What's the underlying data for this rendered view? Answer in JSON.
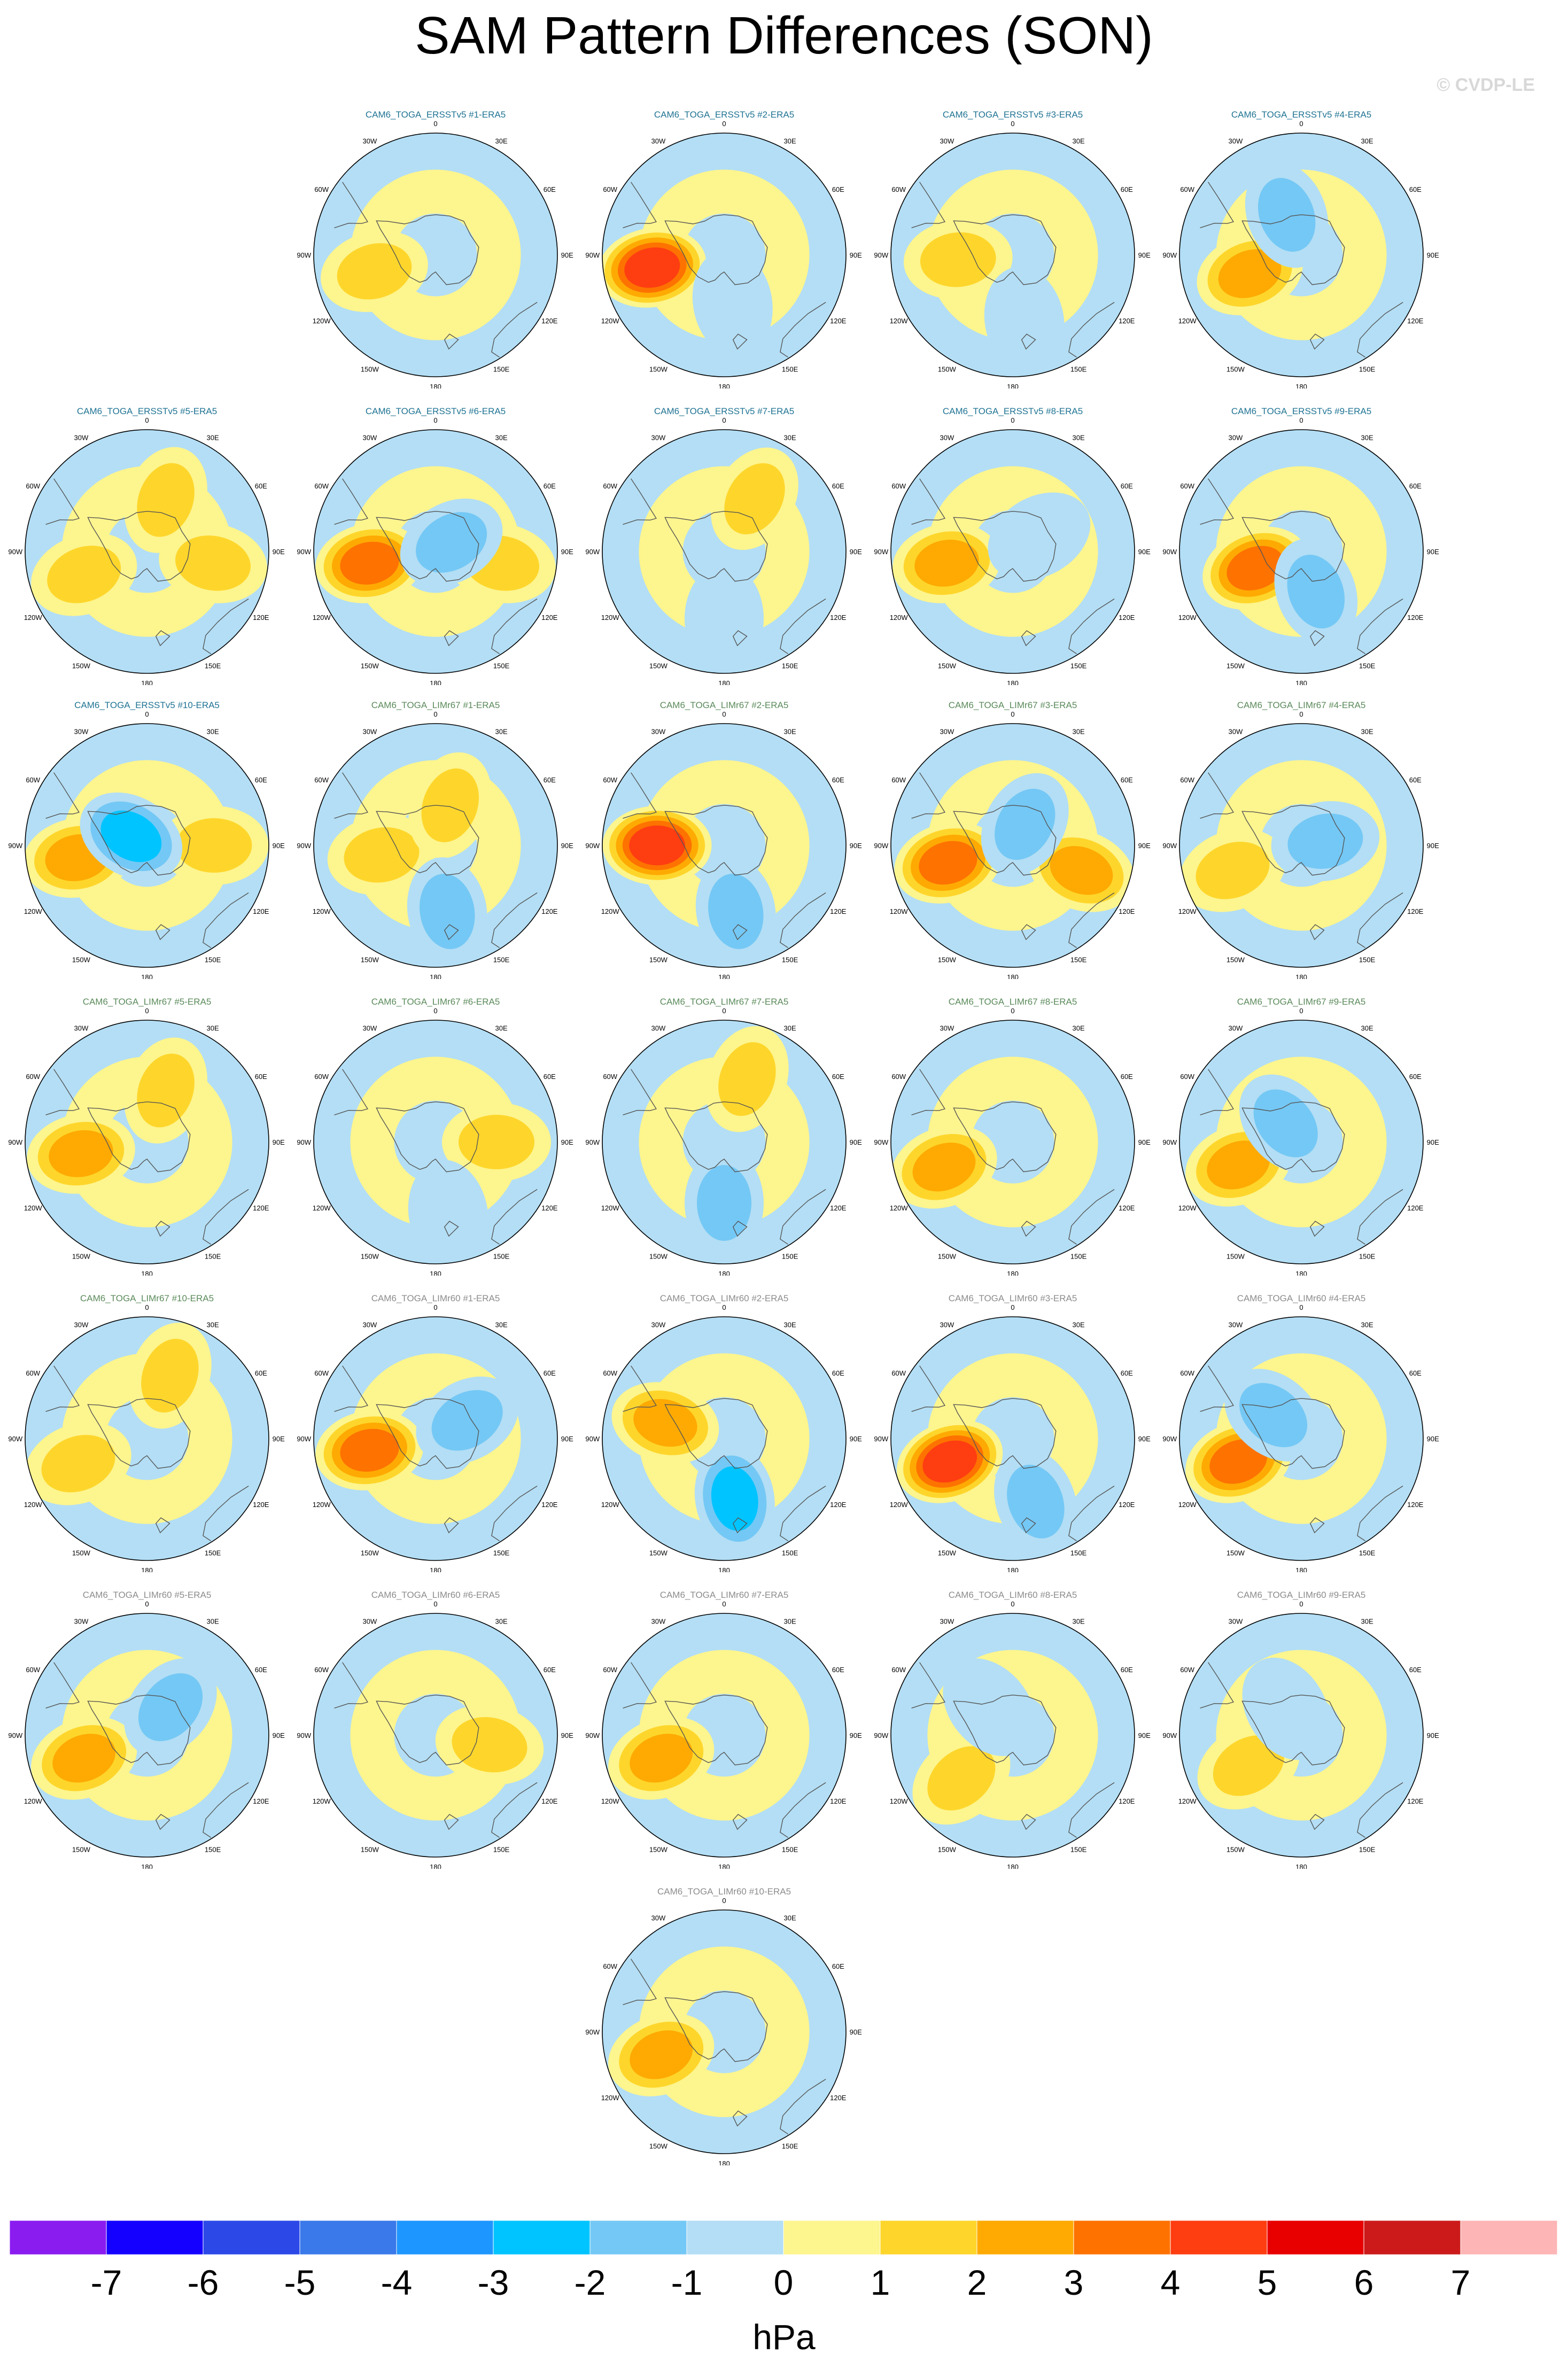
{
  "title": "SAM Pattern Differences (SON)",
  "watermark": "© CVDP-LE",
  "units": "hPa",
  "colorbar": {
    "labels": [
      "-7",
      "-6",
      "-5",
      "-4",
      "-3",
      "-2",
      "-1",
      "0",
      "1",
      "2",
      "3",
      "4",
      "5",
      "6",
      "7"
    ],
    "colors": [
      "#8a1cf0",
      "#1400ff",
      "#2c49e8",
      "#3a79ea",
      "#1e96ff",
      "#00c4ff",
      "#74c8f5",
      "#b3def5",
      "#fdf58e",
      "#fed62b",
      "#feaa03",
      "#fe7200",
      "#fe3d11",
      "#e80000",
      "#cc1a1a",
      "#fdb5b5"
    ]
  },
  "colors": {
    "ERSSTv5": "#1f7393",
    "LIMr67": "#5a8a5a",
    "LIMr60": "#8c8c8c",
    "ocean_positive": "#fdf58e",
    "ocean_negative": "#b3def5"
  },
  "map_labels": [
    "0",
    "30E",
    "60E",
    "90E",
    "120E",
    "150E",
    "180",
    "150W",
    "120W",
    "90W",
    "60W",
    "30W"
  ],
  "panels": [
    {
      "title": "CAM6_TOGA_ERSSTv5 #1-ERA5",
      "group": "ERSSTv5",
      "blobs": [
        {
          "lon": -105,
          "r": 0.52,
          "level": 2
        }
      ]
    },
    {
      "title": "CAM6_TOGA_ERSSTv5 #2-ERA5",
      "group": "ERSSTv5",
      "blobs": [
        {
          "lon": -100,
          "r": 0.6,
          "level": 5
        },
        {
          "lon": 170,
          "r": 0.4,
          "level": -1
        }
      ]
    },
    {
      "title": "CAM6_TOGA_ERSSTv5 #3-ERA5",
      "group": "ERSSTv5",
      "blobs": [
        {
          "lon": -95,
          "r": 0.45,
          "level": 2
        },
        {
          "lon": 170,
          "r": 0.55,
          "level": -1
        }
      ]
    },
    {
      "title": "CAM6_TOGA_ERSSTv5 #4-ERA5",
      "group": "ERSSTv5",
      "blobs": [
        {
          "lon": -110,
          "r": 0.45,
          "level": 3
        },
        {
          "lon": -20,
          "r": 0.35,
          "level": -2
        }
      ]
    },
    {
      "title": "CAM6_TOGA_ERSSTv5 #5-ERA5",
      "group": "ERSSTv5",
      "blobs": [
        {
          "lon": -110,
          "r": 0.55,
          "level": 2
        },
        {
          "lon": 20,
          "r": 0.45,
          "level": 2
        },
        {
          "lon": 100,
          "r": 0.55,
          "level": 2
        }
      ]
    },
    {
      "title": "CAM6_TOGA_ERSSTv5 #6-ERA5",
      "group": "ERSSTv5",
      "blobs": [
        {
          "lon": -100,
          "r": 0.55,
          "level": 4
        },
        {
          "lon": 100,
          "r": 0.55,
          "level": 2
        },
        {
          "lon": 60,
          "r": 0.15,
          "level": -2
        }
      ]
    },
    {
      "title": "CAM6_TOGA_ERSSTv5 #7-ERA5",
      "group": "ERSSTv5",
      "blobs": [
        {
          "lon": 30,
          "r": 0.5,
          "level": 2
        },
        {
          "lon": 180,
          "r": 0.55,
          "level": -1
        }
      ]
    },
    {
      "title": "CAM6_TOGA_ERSSTv5 #8-ERA5",
      "group": "ERSSTv5",
      "blobs": [
        {
          "lon": -100,
          "r": 0.55,
          "level": 3
        },
        {
          "lon": 60,
          "r": 0.25,
          "level": -1
        }
      ]
    },
    {
      "title": "CAM6_TOGA_ERSSTv5 #9-ERA5",
      "group": "ERSSTv5",
      "blobs": [
        {
          "lon": -110,
          "r": 0.4,
          "level": 4
        },
        {
          "lon": 160,
          "r": 0.35,
          "level": -2
        }
      ]
    },
    {
      "title": "CAM6_TOGA_ERSSTv5 #10-ERA5",
      "group": "ERSSTv5",
      "blobs": [
        {
          "lon": -100,
          "r": 0.58,
          "level": 3
        },
        {
          "lon": 90,
          "r": 0.55,
          "level": 2
        },
        {
          "lon": -60,
          "r": 0.15,
          "level": -3
        }
      ]
    },
    {
      "title": "CAM6_TOGA_LIMr67 #1-ERA5",
      "group": "LIMr67",
      "blobs": [
        {
          "lon": -100,
          "r": 0.45,
          "level": 2
        },
        {
          "lon": 20,
          "r": 0.35,
          "level": 2
        },
        {
          "lon": 170,
          "r": 0.55,
          "level": -2
        }
      ]
    },
    {
      "title": "CAM6_TOGA_LIMr67 #2-ERA5",
      "group": "LIMr67",
      "blobs": [
        {
          "lon": -90,
          "r": 0.55,
          "level": 5
        },
        {
          "lon": 170,
          "r": 0.55,
          "level": -2
        }
      ]
    },
    {
      "title": "CAM6_TOGA_LIMr67 #3-ERA5",
      "group": "LIMr67",
      "blobs": [
        {
          "lon": -105,
          "r": 0.55,
          "level": 4
        },
        {
          "lon": 110,
          "r": 0.6,
          "level": 3
        },
        {
          "lon": 30,
          "r": 0.2,
          "level": -2
        }
      ]
    },
    {
      "title": "CAM6_TOGA_LIMr67 #4-ERA5",
      "group": "LIMr67",
      "blobs": [
        {
          "lon": -110,
          "r": 0.6,
          "level": 2
        },
        {
          "lon": 80,
          "r": 0.2,
          "level": -2
        }
      ]
    },
    {
      "title": "CAM6_TOGA_LIMr67 #5-ERA5",
      "group": "LIMr67",
      "blobs": [
        {
          "lon": -100,
          "r": 0.55,
          "level": 3
        },
        {
          "lon": 20,
          "r": 0.45,
          "level": 2
        }
      ]
    },
    {
      "title": "CAM6_TOGA_LIMr67 #6-ERA5",
      "group": "LIMr67",
      "blobs": [
        {
          "lon": 90,
          "r": 0.5,
          "level": 2
        },
        {
          "lon": 170,
          "r": 0.6,
          "level": -1
        }
      ]
    },
    {
      "title": "CAM6_TOGA_LIMr67 #7-ERA5",
      "group": "LIMr67",
      "blobs": [
        {
          "lon": 20,
          "r": 0.55,
          "level": 2
        },
        {
          "lon": 180,
          "r": 0.5,
          "level": -2
        }
      ]
    },
    {
      "title": "CAM6_TOGA_LIMr67 #8-ERA5",
      "group": "LIMr67",
      "blobs": [
        {
          "lon": -110,
          "r": 0.6,
          "level": 3
        }
      ]
    },
    {
      "title": "CAM6_TOGA_LIMr67 #9-ERA5",
      "group": "LIMr67",
      "blobs": [
        {
          "lon": -110,
          "r": 0.55,
          "level": 3
        },
        {
          "lon": -40,
          "r": 0.2,
          "level": -2
        }
      ]
    },
    {
      "title": "CAM6_TOGA_LIMr67 #10-ERA5",
      "group": "LIMr67",
      "blobs": [
        {
          "lon": -110,
          "r": 0.6,
          "level": 2
        },
        {
          "lon": 20,
          "r": 0.55,
          "level": 2
        }
      ]
    },
    {
      "title": "CAM6_TOGA_LIMr60 #1-ERA5",
      "group": "LIMr60",
      "blobs": [
        {
          "lon": -100,
          "r": 0.55,
          "level": 4
        },
        {
          "lon": 60,
          "r": 0.3,
          "level": -2
        }
      ]
    },
    {
      "title": "CAM6_TOGA_LIMr60 #2-ERA5",
      "group": "LIMr60",
      "blobs": [
        {
          "lon": -75,
          "r": 0.5,
          "level": 3
        },
        {
          "lon": 170,
          "r": 0.5,
          "level": -3
        }
      ]
    },
    {
      "title": "CAM6_TOGA_LIMr60 #3-ERA5",
      "group": "LIMr60",
      "blobs": [
        {
          "lon": -110,
          "r": 0.55,
          "level": 5
        },
        {
          "lon": 160,
          "r": 0.55,
          "level": -2
        }
      ]
    },
    {
      "title": "CAM6_TOGA_LIMr60 #4-ERA5",
      "group": "LIMr60",
      "blobs": [
        {
          "lon": -110,
          "r": 0.55,
          "level": 4
        },
        {
          "lon": -50,
          "r": 0.3,
          "level": -2
        }
      ]
    },
    {
      "title": "CAM6_TOGA_LIMr60 #5-ERA5",
      "group": "LIMr60",
      "blobs": [
        {
          "lon": -110,
          "r": 0.55,
          "level": 3
        },
        {
          "lon": 40,
          "r": 0.3,
          "level": -2
        }
      ]
    },
    {
      "title": "CAM6_TOGA_LIMr60 #6-ERA5",
      "group": "LIMr60",
      "blobs": [
        {
          "lon": 100,
          "r": 0.45,
          "level": 2
        }
      ]
    },
    {
      "title": "CAM6_TOGA_LIMr60 #7-ERA5",
      "group": "LIMr60",
      "blobs": [
        {
          "lon": -110,
          "r": 0.55,
          "level": 3
        }
      ]
    },
    {
      "title": "CAM6_TOGA_LIMr60 #8-ERA5",
      "group": "LIMr60",
      "blobs": [
        {
          "lon": -130,
          "r": 0.55,
          "level": 2
        },
        {
          "lon": -40,
          "r": 0.3,
          "level": -1
        }
      ]
    },
    {
      "title": "CAM6_TOGA_LIMr60 #9-ERA5",
      "group": "LIMr60",
      "blobs": [
        {
          "lon": -120,
          "r": 0.5,
          "level": 2
        },
        {
          "lon": -30,
          "r": 0.25,
          "level": -1
        }
      ]
    },
    {
      "title": "CAM6_TOGA_LIMr60 #10-ERA5",
      "group": "LIMr60",
      "blobs": [
        {
          "lon": -110,
          "r": 0.55,
          "level": 3
        }
      ]
    }
  ]
}
